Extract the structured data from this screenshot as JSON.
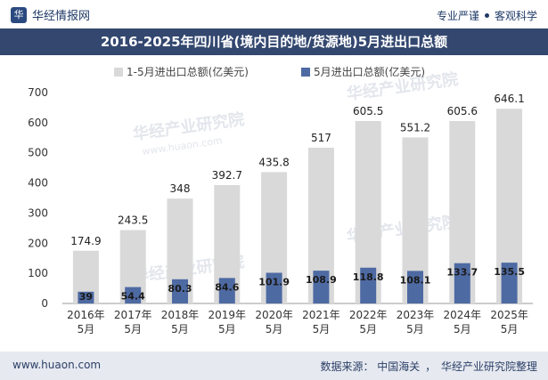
{
  "header": {
    "brand": "华经情报网",
    "slogan_left": "专业严谨",
    "slogan_right": "客观科学"
  },
  "chart_data": {
    "type": "bar",
    "title": "2016-2025年四川省(境内目的地/货源地)5月进出口总额",
    "categories": [
      "2016年\n5月",
      "2017年\n5月",
      "2018年\n5月",
      "2019年\n5月",
      "2020年\n5月",
      "2021年\n5月",
      "2022年\n5月",
      "2023年\n5月",
      "2024年\n5月",
      "2025年\n5月"
    ],
    "series": [
      {
        "name": "1-5月进出口总额(亿美元)",
        "color": "#d9d9d9",
        "values": [
          174.9,
          243.5,
          348,
          392.7,
          435.8,
          517,
          605.5,
          551.2,
          605.6,
          646.1
        ]
      },
      {
        "name": "5月进出口总额(亿美元)",
        "color": "#4e6aa3",
        "values": [
          39,
          54.4,
          80.3,
          84.6,
          101.9,
          108.9,
          118.8,
          108.1,
          133.7,
          135.5
        ]
      }
    ],
    "ylim": [
      0,
      700
    ],
    "yticks": [
      0,
      100,
      200,
      300,
      400,
      500,
      600,
      700
    ],
    "legend_position": "top-left",
    "grid": false
  },
  "watermark": {
    "text_cn": "华经产业研究院",
    "text_url": "www.huaon.com"
  },
  "footer": {
    "website": "www.huaon.com",
    "source_label": "数据来源：",
    "source_1": "中国海关",
    "source_2": "华经产业研究院整理"
  }
}
